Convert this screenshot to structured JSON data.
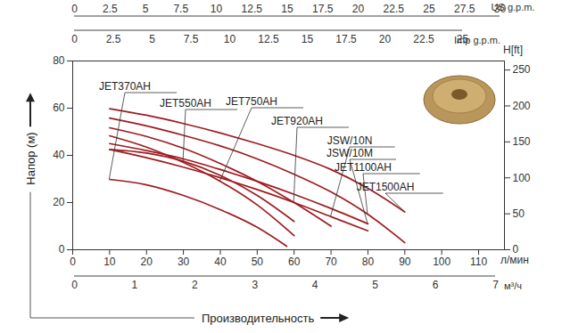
{
  "chart_data": {
    "type": "line",
    "xlabel": "Производительность",
    "xunit": "л/мин",
    "ylabel": "Напор (м)",
    "y2label": "H[ft]",
    "xlim": [
      0,
      117
    ],
    "xticks": [
      0,
      10,
      20,
      30,
      40,
      50,
      60,
      70,
      80,
      90,
      100,
      110
    ],
    "ylim": [
      0,
      80
    ],
    "yticks": [
      0,
      20,
      40,
      60,
      80
    ],
    "y2lim": [
      0,
      262.5
    ],
    "y2ticks": [
      0,
      50,
      100,
      150,
      200,
      250
    ],
    "x_axes": [
      {
        "label": "US g.p.m.",
        "xlim": [
          0,
          30
        ],
        "xticks": [
          0,
          2.5,
          5,
          7.5,
          10,
          12.5,
          15,
          17.5,
          20,
          22.5,
          25,
          27.5,
          30
        ]
      },
      {
        "label": "Imp g.p.m.",
        "xlim": [
          0,
          25
        ],
        "xticks": [
          0,
          2.5,
          5,
          7.5,
          10,
          12.5,
          15,
          17.5,
          20,
          22.5,
          25
        ]
      },
      {
        "label": "м³/ч",
        "xlim": [
          0,
          7
        ],
        "xticks": [
          0,
          1,
          2,
          3,
          4,
          5,
          6,
          7
        ]
      }
    ],
    "grid": false,
    "color": "#9e1b20",
    "line_style": "solid",
    "series": [
      {
        "name": "JET370AH",
        "x": [
          10,
          20,
          30,
          40,
          50,
          58
        ],
        "values": [
          29.8,
          27.5,
          23,
          17,
          9.5,
          1.5
        ]
      },
      {
        "name": "JET550AH",
        "x": [
          10,
          20,
          30,
          40,
          50,
          60
        ],
        "values": [
          42.5,
          41,
          37.5,
          31.5,
          23,
          12
        ]
      },
      {
        "name": "JET750AH",
        "x": [
          10,
          20,
          30,
          40,
          50,
          60
        ],
        "values": [
          48.3,
          43.5,
          37,
          29,
          19,
          6
        ]
      },
      {
        "name": "JET920AH",
        "x": [
          10,
          20,
          30,
          40,
          50,
          60,
          70
        ],
        "values": [
          51.7,
          48,
          43,
          36.5,
          29,
          20,
          10
        ]
      },
      {
        "name": "JSW/10N",
        "x": [
          10,
          20,
          30,
          40,
          50,
          60,
          70,
          80
        ],
        "values": [
          42.5,
          39,
          35,
          30.5,
          25.5,
          20,
          14,
          8
        ]
      },
      {
        "name": "JSW/10M",
        "x": [
          10,
          20,
          30,
          40,
          50,
          60,
          70,
          80
        ],
        "values": [
          45,
          42,
          38.5,
          34,
          29,
          23.5,
          17.5,
          11
        ]
      },
      {
        "name": "JET1100AH",
        "x": [
          10,
          20,
          30,
          40,
          50,
          60,
          70,
          80,
          90
        ],
        "values": [
          55.8,
          52.5,
          48.5,
          44,
          38.5,
          32,
          24.5,
          15,
          3
        ]
      },
      {
        "name": "JET1500AH",
        "x": [
          10,
          20,
          30,
          40,
          50,
          60,
          70,
          80,
          90
        ],
        "values": [
          59.8,
          57,
          53.5,
          49.5,
          45,
          40,
          34,
          26,
          16
        ]
      }
    ]
  }
}
